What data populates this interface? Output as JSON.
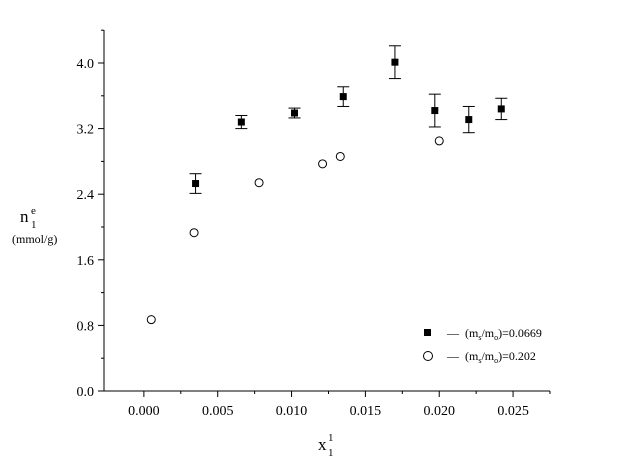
{
  "chart_data": {
    "type": "scatter",
    "xlim": [
      -0.0027,
      0.0275
    ],
    "ylim": [
      0.0,
      4.0
    ],
    "x_ticks": [
      0.0,
      0.005,
      0.01,
      0.015,
      0.02,
      0.025
    ],
    "x_tick_labels": [
      "0.000",
      "0.005",
      "0.010",
      "0.015",
      "0.020",
      "0.025"
    ],
    "y_ticks": [
      0.0,
      0.8,
      1.6,
      2.4,
      3.2,
      4.0
    ],
    "y_tick_labels": [
      "0.0",
      "0.8",
      "1.6",
      "2.4",
      "3.2",
      "4.0"
    ],
    "ylabel": {
      "main": "n",
      "sub": "1",
      "sup": "e",
      "unit": "(mmol/g)"
    },
    "xlabel": {
      "main": "x",
      "sub": "1",
      "sup": "1"
    },
    "grid": false,
    "legend_position": "bottom-right",
    "series": [
      {
        "name": "— (m_s/m_o)=0.0669",
        "name_parts": {
          "dash": "—",
          "open": "(m",
          "s1": "s",
          "mid": "/m",
          "s2": "o",
          "close": ")=0.0669"
        },
        "marker": "filled-square",
        "x": [
          0.0035,
          0.0066,
          0.0102,
          0.0135,
          0.017,
          0.0197,
          0.022,
          0.0242
        ],
        "y": [
          2.53,
          3.28,
          3.39,
          3.59,
          4.01,
          3.42,
          3.31,
          3.44
        ],
        "y_err": [
          0.12,
          0.08,
          0.06,
          0.12,
          0.2,
          0.2,
          0.16,
          0.13
        ]
      },
      {
        "name": "— (m_s/m_o)=0.202",
        "name_parts": {
          "dash": "—",
          "open": "(m",
          "s1": "s",
          "mid": "/m",
          "s2": "o",
          "close": ")=0.202"
        },
        "marker": "open-circle",
        "x": [
          0.0005,
          0.0034,
          0.0078,
          0.0121,
          0.0133,
          0.02
        ],
        "y": [
          0.87,
          1.93,
          2.54,
          2.77,
          2.86,
          3.05
        ]
      }
    ]
  }
}
